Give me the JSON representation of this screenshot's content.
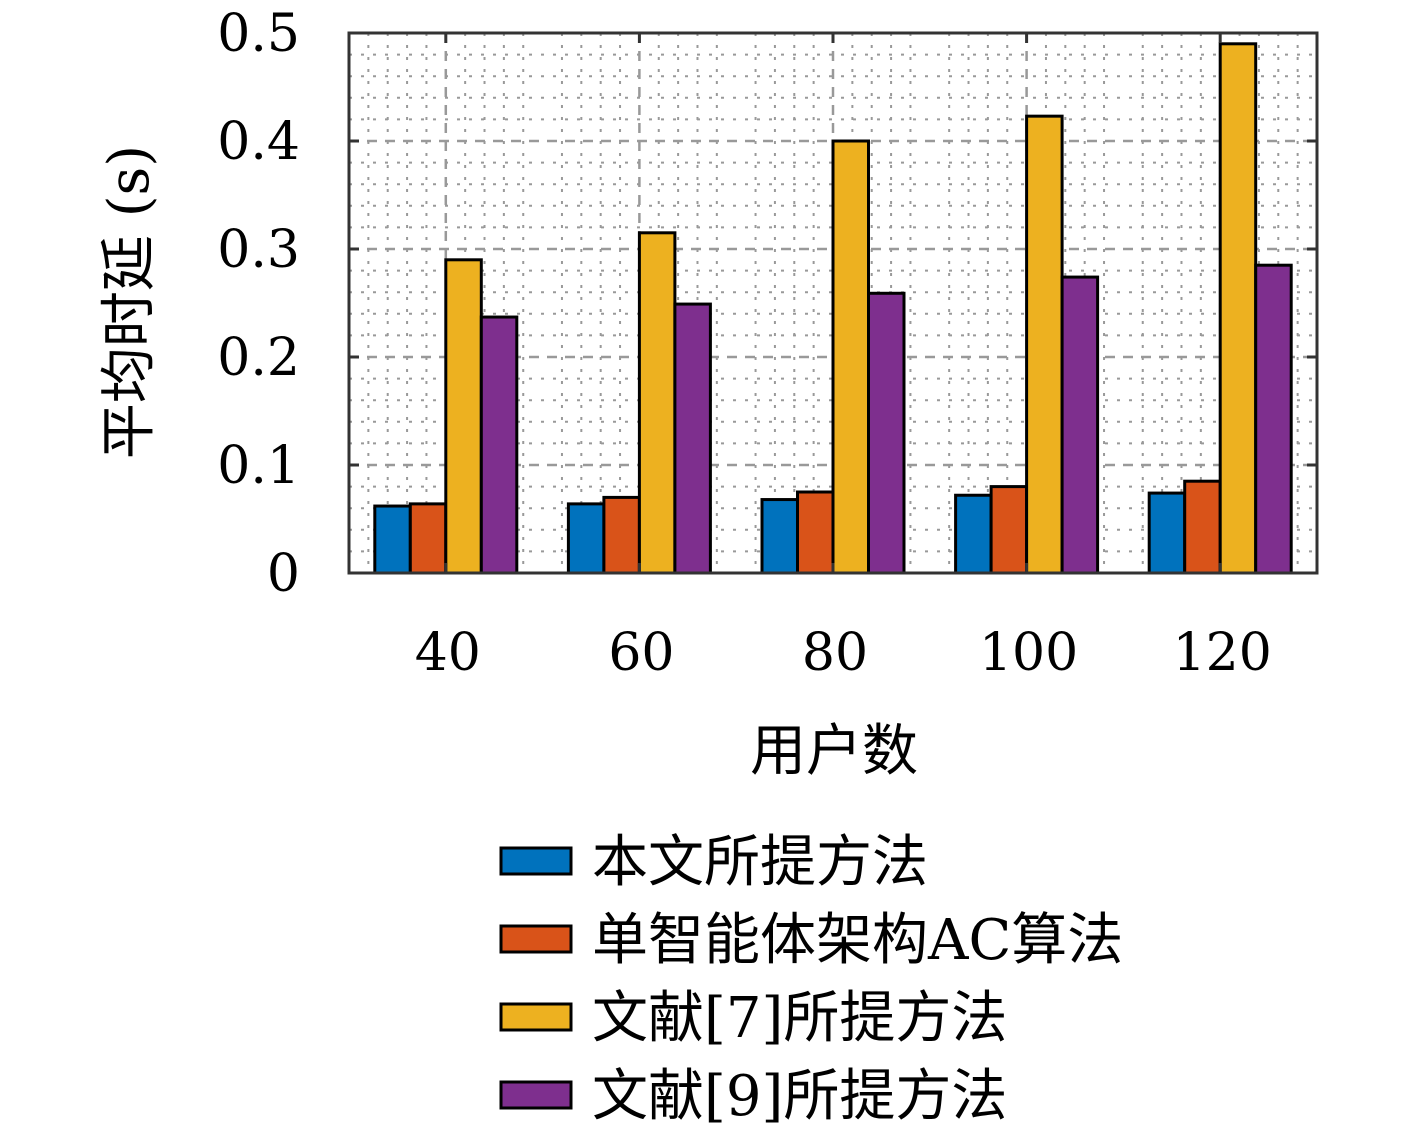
{
  "chart_data": {
    "type": "bar",
    "xlabel": "用户数",
    "ylabel": "平均时延 (s)",
    "categories": [
      "40",
      "60",
      "80",
      "100",
      "120"
    ],
    "ylim": [
      0,
      0.5
    ],
    "yticks": [
      "0",
      "0.1",
      "0.2",
      "0.3",
      "0.4",
      "0.5"
    ],
    "grid": true,
    "legend_position": "below",
    "series": [
      {
        "name": "本文所提方法",
        "color": "#0072BD",
        "values": [
          0.062,
          0.064,
          0.068,
          0.072,
          0.074
        ]
      },
      {
        "name": "单智能体架构AC算法",
        "color": "#D95319",
        "values": [
          0.064,
          0.07,
          0.075,
          0.08,
          0.085
        ]
      },
      {
        "name": "文献[7]所提方法",
        "color": "#EDB120",
        "values": [
          0.29,
          0.315,
          0.4,
          0.423,
          0.49
        ]
      },
      {
        "name": "文献[9]所提方法",
        "color": "#7E2F8E",
        "values": [
          0.237,
          0.249,
          0.259,
          0.274,
          0.285
        ]
      }
    ]
  }
}
